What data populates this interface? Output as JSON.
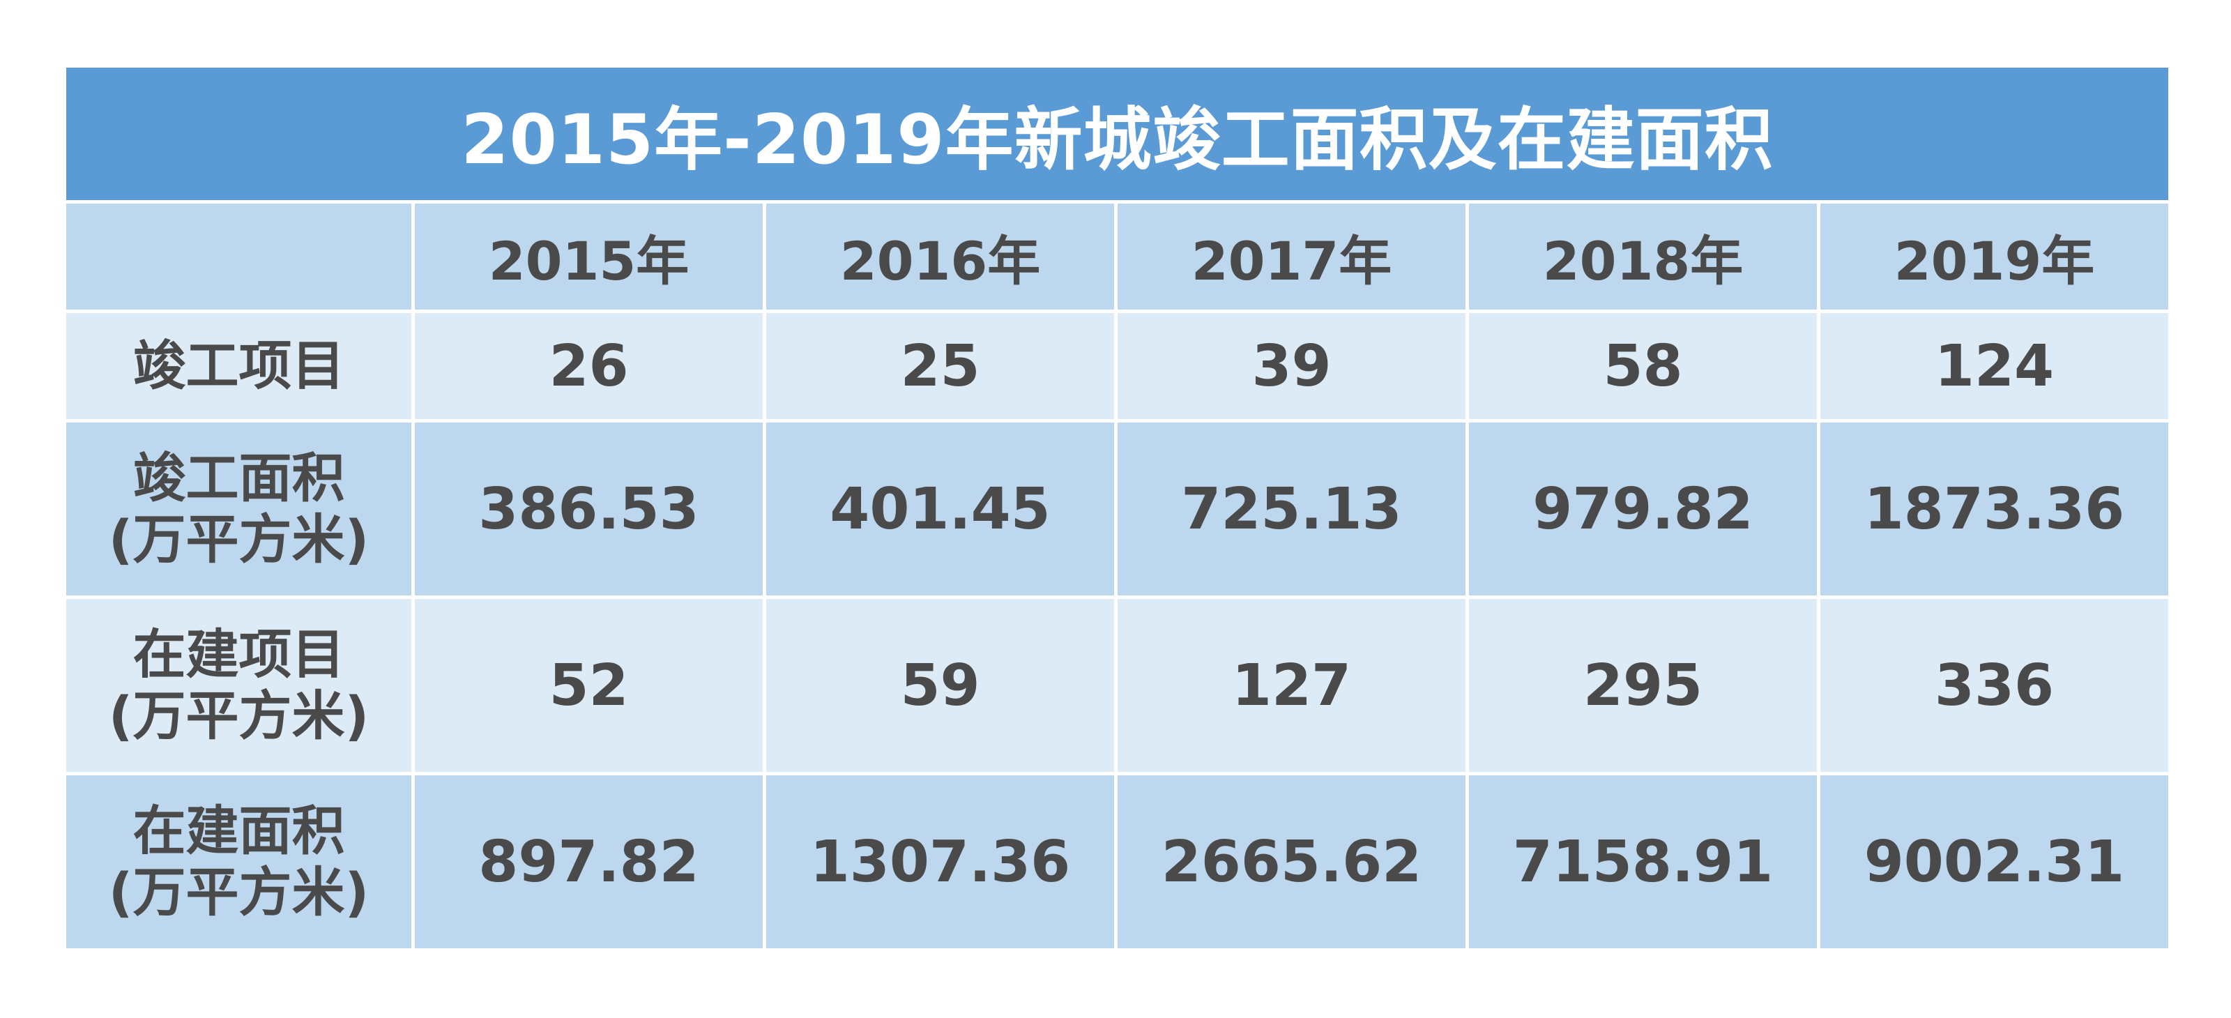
{
  "chart_data": {
    "type": "table",
    "title": "2015年-2019年新城竣工面积及在建面积",
    "columns": [
      "",
      "2015年",
      "2016年",
      "2017年",
      "2018年",
      "2019年"
    ],
    "rows": [
      {
        "label": [
          "竣工项目"
        ],
        "values": [
          "26",
          "25",
          "39",
          "58",
          "124"
        ]
      },
      {
        "label": [
          "竣工面积",
          "(万平方米)"
        ],
        "values": [
          "386.53",
          "401.45",
          "725.13",
          "979.82",
          "1873.36"
        ]
      },
      {
        "label": [
          "在建项目",
          "(万平方米)"
        ],
        "values": [
          "52",
          "59",
          "127",
          "295",
          "336"
        ]
      },
      {
        "label": [
          "在建面积",
          "(万平方米)"
        ],
        "values": [
          "897.82",
          "1307.36",
          "2665.62",
          "7158.91",
          "9002.31"
        ]
      }
    ]
  },
  "colors": {
    "title_bg": "#5b9bd5",
    "row_dark": "#bdd7ee",
    "row_light": "#ddebf7",
    "text": "#4a4a4a",
    "title_text": "#ffffff"
  }
}
